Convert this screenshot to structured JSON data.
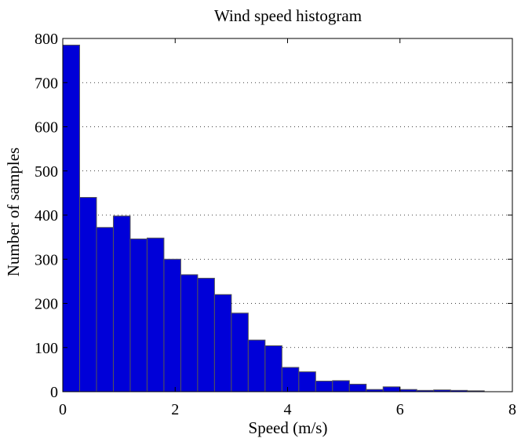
{
  "chart_data": {
    "type": "bar",
    "title": "Wind speed histogram",
    "xlabel": "Speed (m/s)",
    "ylabel": "Number of samples",
    "xlim": [
      0,
      8
    ],
    "ylim": [
      0,
      800
    ],
    "x_ticks": [
      0,
      2,
      4,
      6,
      8
    ],
    "y_ticks": [
      0,
      100,
      200,
      300,
      400,
      500,
      600,
      700,
      800
    ],
    "bin_edges": [
      0,
      0.3,
      0.6,
      0.9,
      1.2,
      1.5,
      1.8,
      2.1,
      2.4,
      2.7,
      3.0,
      3.3,
      3.6,
      3.9,
      4.2,
      4.5,
      4.8,
      5.1,
      5.4,
      5.7,
      6.0,
      6.3,
      6.6,
      6.9,
      7.2,
      7.5
    ],
    "values": [
      785,
      440,
      372,
      398,
      346,
      348,
      300,
      265,
      257,
      220,
      178,
      117,
      104,
      55,
      45,
      24,
      25,
      17,
      5,
      11,
      5,
      3,
      4,
      3,
      2
    ],
    "grid": "horizontal-dotted",
    "bar_color": "#0000d8",
    "edge_color": "#555555"
  }
}
